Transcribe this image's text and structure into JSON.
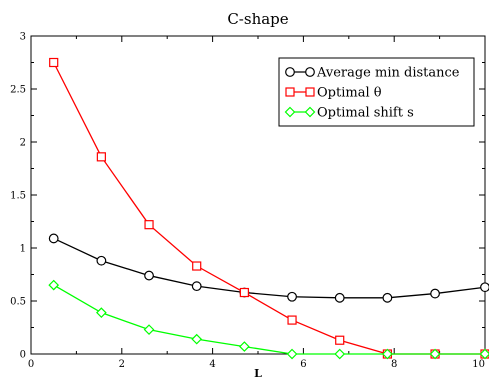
{
  "chart_data": {
    "type": "line",
    "title": "C-shape",
    "xlabel": "L",
    "ylabel": "",
    "xlim": [
      0,
      10
    ],
    "ylim": [
      0,
      3
    ],
    "xticks": [
      0,
      2,
      4,
      6,
      8,
      10
    ],
    "xtick_labels": [
      "0",
      "2",
      "4",
      "6",
      "8",
      "10"
    ],
    "yticks": [
      0,
      0.5,
      1,
      1.5,
      2,
      2.5,
      3
    ],
    "ytick_labels": [
      "0",
      "0.5",
      "1",
      "1.5",
      "2",
      "2.5",
      "3"
    ],
    "grid": false,
    "legend_position": "top-right",
    "x": [
      0.5,
      1.55,
      2.6,
      3.65,
      4.7,
      5.75,
      6.8,
      7.85,
      8.9,
      10
    ],
    "series": [
      {
        "name": "Average min distance",
        "color": "#000000",
        "marker": "circle",
        "values": [
          1.09,
          0.88,
          0.74,
          0.64,
          0.58,
          0.54,
          0.53,
          0.53,
          0.57,
          0.63
        ]
      },
      {
        "name": "Optimal θ",
        "color": "#ff0000",
        "marker": "square",
        "values": [
          2.75,
          1.86,
          1.22,
          0.83,
          0.58,
          0.32,
          0.13,
          0.0,
          0.0,
          0.0
        ]
      },
      {
        "name": "Optimal shift s",
        "color": "#00ff00",
        "marker": "diamond",
        "values": [
          0.65,
          0.39,
          0.23,
          0.14,
          0.07,
          0.0,
          0.0,
          0.0,
          0.0,
          0.0
        ]
      }
    ]
  }
}
